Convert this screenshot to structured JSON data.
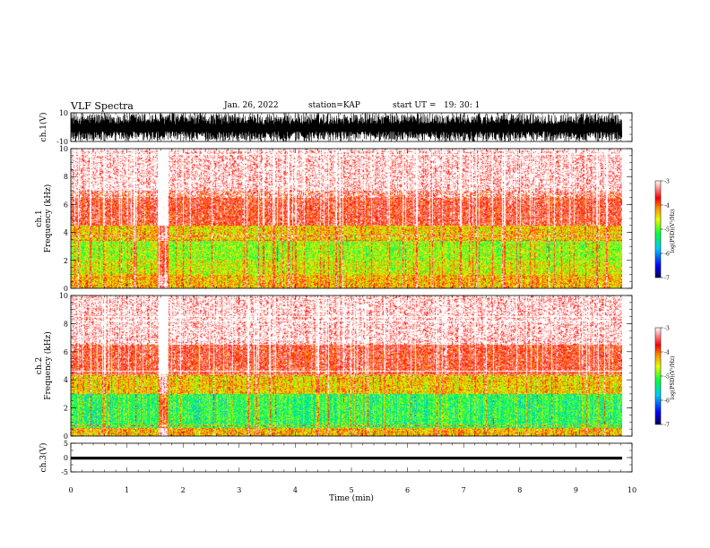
{
  "header": {
    "title": "VLF Spectra",
    "date": "Jan. 26, 2022",
    "station": "station=KAP",
    "start": "start UT =   19: 30: 1"
  },
  "chart_data": [
    {
      "type": "line",
      "panel": "waveform-ch1",
      "ylabel": "ch.1(V)",
      "ylim": [
        -10,
        10
      ],
      "yticks": [
        "10",
        "-10"
      ],
      "xlim": [
        0,
        10
      ],
      "x_extent_min": 9.82,
      "color": "#000000"
    },
    {
      "type": "heatmap",
      "panel": "spectrogram-ch1",
      "ylabel": "ch.1\nFrequency (kHz)",
      "ylim": [
        0,
        10
      ],
      "yticks": [
        "0",
        "2",
        "4",
        "6",
        "8",
        "10"
      ],
      "xlim": [
        0,
        10
      ],
      "x_extent_min": 9.82,
      "bands": [
        {
          "from": 0,
          "to": 1.0,
          "level": -4.3
        },
        {
          "from": 1.0,
          "to": 2.0,
          "level": -4.6
        },
        {
          "from": 2.0,
          "to": 3.5,
          "level": -4.8
        },
        {
          "from": 3.5,
          "to": 4.5,
          "level": -4.4
        },
        {
          "from": 4.5,
          "to": 7,
          "level": -3.6
        },
        {
          "from": 7,
          "to": 10,
          "level": -3.2
        }
      ],
      "quiet_intervals_min": [
        [
          1.55,
          1.72
        ]
      ],
      "colorbar": {
        "label": "log(PSD)(V²/Hz)",
        "range": [
          -7,
          -3
        ],
        "ticks": [
          "-3",
          "-4",
          "-5",
          "-6",
          "-7"
        ]
      }
    },
    {
      "type": "heatmap",
      "panel": "spectrogram-ch2",
      "ylabel": "ch.2\nFrequency (kHz)",
      "ylim": [
        0,
        10
      ],
      "yticks": [
        "0",
        "2",
        "4",
        "6",
        "8",
        "10"
      ],
      "xlim": [
        0,
        10
      ],
      "x_extent_min": 9.82,
      "bands": [
        {
          "from": 0,
          "to": 0.6,
          "level": -4.3
        },
        {
          "from": 0.6,
          "to": 3.0,
          "level": -5.2
        },
        {
          "from": 3.0,
          "to": 4.4,
          "level": -4.4
        },
        {
          "from": 4.4,
          "to": 6.5,
          "level": -3.6
        },
        {
          "from": 6.5,
          "to": 10,
          "level": -3.2
        }
      ],
      "quiet_intervals_min": [
        [
          1.55,
          1.72
        ]
      ],
      "colorbar": {
        "label": "log(PSD)(V²/Hz)",
        "range": [
          -7,
          -3
        ],
        "ticks": [
          "-3",
          "-4",
          "-5",
          "-6",
          "-7"
        ]
      }
    },
    {
      "type": "line",
      "panel": "waveform-ch3",
      "ylabel": "ch.3(V)",
      "ylim": [
        -5,
        5
      ],
      "yticks": [
        "5",
        "0",
        "-5"
      ],
      "xlim": [
        0,
        10
      ],
      "x_extent_min": 9.82,
      "constant_value": -0.2,
      "amplitude": 0.5,
      "color": "#000000"
    }
  ],
  "xaxis": {
    "xlabel": "Time (min)",
    "ticks": [
      "0",
      "1",
      "2",
      "3",
      "4",
      "5",
      "6",
      "7",
      "8",
      "9",
      "10"
    ]
  },
  "colors": {
    "low": "#000080",
    "mid": "#00e000",
    "high": "#ff0000",
    "top": "#ffffff"
  }
}
